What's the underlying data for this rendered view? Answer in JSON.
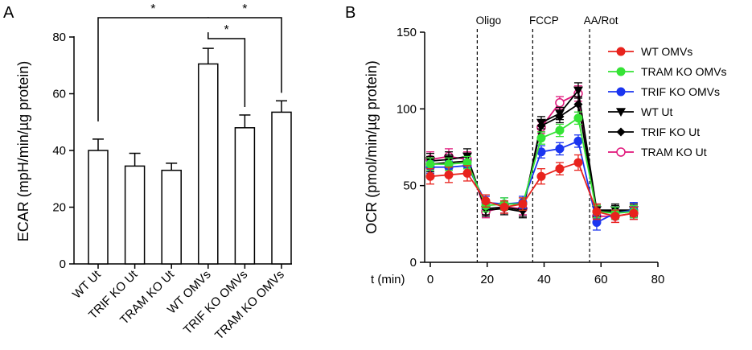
{
  "chart_data": [
    {
      "panel": "A",
      "type": "bar",
      "ylabel": "ECAR (mpH/min/µg protein)",
      "ylim": [
        0,
        80
      ],
      "yticks": [
        0,
        20,
        40,
        60,
        80
      ],
      "categories": [
        "WT Ut",
        "TRIF KO Ut",
        "TRAM KO Ut",
        "WT OMVs",
        "TRIF KO OMVs",
        "TRAM KO OMVs"
      ],
      "values": [
        40,
        34.5,
        33,
        70.5,
        48,
        53.5
      ],
      "errors": [
        4,
        4.5,
        2.5,
        5.5,
        4.5,
        4
      ],
      "significance": [
        {
          "from": "WT Ut",
          "to": "WT OMVs",
          "label": "*"
        },
        {
          "from": "WT OMVs",
          "to": "TRAM KO OMVs",
          "label": "*"
        },
        {
          "from": "WT OMVs",
          "to": "TRIF KO OMVs",
          "label": "*"
        }
      ]
    },
    {
      "panel": "B",
      "type": "line",
      "xlabel": "t (min)",
      "ylabel": "OCR (pmol/min/µg protein)",
      "xlim": [
        0,
        80
      ],
      "ylim": [
        0,
        150
      ],
      "xticks": [
        0,
        20,
        40,
        60,
        80
      ],
      "yticks": [
        0,
        50,
        100,
        150
      ],
      "x": [
        0,
        6.5,
        13,
        19.5,
        26,
        32.5,
        39,
        45.5,
        52,
        58.5,
        65,
        71.5
      ],
      "annotations": [
        {
          "label": "Oligo",
          "x": 16.5
        },
        {
          "label": "FCCP",
          "x": 36
        },
        {
          "label": "AA/Rot",
          "x": 56
        }
      ],
      "series": [
        {
          "name": "WT OMVs",
          "color": "#e8231d",
          "marker": "circle",
          "values": [
            56,
            57,
            58,
            40,
            36,
            38,
            56,
            61,
            65,
            33,
            30,
            32
          ],
          "errors": [
            5,
            5,
            5,
            4,
            4,
            4,
            5,
            4,
            5,
            5,
            4,
            4
          ]
        },
        {
          "name": "TRAM KO OMVs",
          "color": "#35e335",
          "marker": "circle",
          "values": [
            64,
            64,
            65,
            37,
            38,
            38,
            81,
            86,
            94,
            33,
            32,
            33
          ],
          "errors": [
            4,
            4,
            4,
            4,
            4,
            4,
            4,
            4,
            4,
            4,
            4,
            4
          ]
        },
        {
          "name": "TRIF KO OMVs",
          "color": "#1b35f0",
          "marker": "circle",
          "values": [
            62,
            62,
            63,
            39,
            38,
            39,
            72,
            74,
            79,
            26,
            32,
            34
          ],
          "errors": [
            4,
            4,
            4,
            4,
            4,
            4,
            4,
            4,
            4,
            5,
            4,
            5
          ]
        },
        {
          "name": "WT Ut",
          "color": "#000000",
          "marker": "triangle-down",
          "values": [
            66,
            67,
            69,
            34,
            35,
            33,
            91,
            97,
            112,
            34,
            34,
            34
          ],
          "errors": [
            5,
            5,
            5,
            4,
            4,
            4,
            4,
            4,
            5,
            4,
            4,
            4
          ]
        },
        {
          "name": "TRIF KO Ut",
          "color": "#000000",
          "marker": "diamond",
          "values": [
            64,
            65,
            66,
            35,
            36,
            34,
            89,
            95,
            103,
            33,
            33,
            34
          ],
          "errors": [
            5,
            5,
            5,
            4,
            4,
            4,
            4,
            4,
            5,
            4,
            4,
            4
          ]
        },
        {
          "name": "TRAM KO Ut",
          "color": "#e0157a",
          "marker": "open-circle",
          "values": [
            67,
            69,
            67,
            33,
            36,
            35,
            88,
            104,
            110,
            30,
            30,
            32
          ],
          "errors": [
            5,
            5,
            5,
            4,
            4,
            4,
            4,
            4,
            5,
            4,
            4,
            4
          ]
        }
      ]
    }
  ]
}
